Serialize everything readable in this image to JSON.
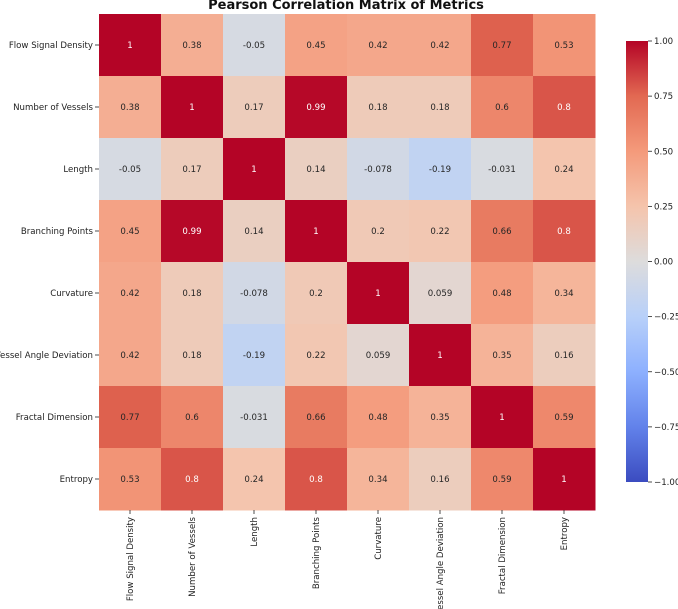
{
  "chart_data": {
    "type": "heatmap",
    "title": "Pearson Correlation Matrix of Metrics",
    "xlabel": "",
    "ylabel": "",
    "categories": [
      "Flow Signal Density",
      "Number of Vessels",
      "Length",
      "Branching Points",
      "Curvature",
      "Vessel Angle Deviation",
      "Fractal Dimension",
      "Entropy"
    ],
    "values": [
      [
        1,
        0.38,
        -0.05,
        0.45,
        0.42,
        0.42,
        0.77,
        0.53
      ],
      [
        0.38,
        1,
        0.17,
        0.99,
        0.18,
        0.18,
        0.6,
        0.8
      ],
      [
        -0.05,
        0.17,
        1,
        0.14,
        -0.078,
        -0.19,
        -0.031,
        0.24
      ],
      [
        0.45,
        0.99,
        0.14,
        1,
        0.2,
        0.22,
        0.66,
        0.8
      ],
      [
        0.42,
        0.18,
        -0.078,
        0.2,
        1,
        0.059,
        0.48,
        0.34
      ],
      [
        0.42,
        0.18,
        -0.19,
        0.22,
        0.059,
        1,
        0.35,
        0.16
      ],
      [
        0.77,
        0.6,
        -0.031,
        0.66,
        0.48,
        0.35,
        1,
        0.59
      ],
      [
        0.53,
        0.8,
        0.24,
        0.8,
        0.34,
        0.16,
        0.59,
        1
      ]
    ],
    "labels": [
      [
        "1",
        "0.38",
        "-0.05",
        "0.45",
        "0.42",
        "0.42",
        "0.77",
        "0.53"
      ],
      [
        "0.38",
        "1",
        "0.17",
        "0.99",
        "0.18",
        "0.18",
        "0.6",
        "0.8"
      ],
      [
        "-0.05",
        "0.17",
        "1",
        "0.14",
        "-0.078",
        "-0.19",
        "-0.031",
        "0.24"
      ],
      [
        "0.45",
        "0.99",
        "0.14",
        "1",
        "0.2",
        "0.22",
        "0.66",
        "0.8"
      ],
      [
        "0.42",
        "0.18",
        "-0.078",
        "0.2",
        "1",
        "0.059",
        "0.48",
        "0.34"
      ],
      [
        "0.42",
        "0.18",
        "-0.19",
        "0.22",
        "0.059",
        "1",
        "0.35",
        "0.16"
      ],
      [
        "0.77",
        "0.6",
        "-0.031",
        "0.66",
        "0.48",
        "0.35",
        "1",
        "0.59"
      ],
      [
        "0.53",
        "0.8",
        "0.24",
        "0.8",
        "0.34",
        "0.16",
        "0.59",
        "1"
      ]
    ],
    "colormap": "coolwarm",
    "vmin": -1,
    "vmax": 1,
    "colorbar_ticks": [
      "1.00",
      "0.75",
      "0.50",
      "0.25",
      "0.00",
      "−0.25",
      "−0.50",
      "−0.75",
      "−1.00"
    ],
    "colorbar_tick_values": [
      1,
      0.75,
      0.5,
      0.25,
      0,
      -0.25,
      -0.5,
      -0.75,
      -1
    ],
    "legend_position": "right"
  }
}
